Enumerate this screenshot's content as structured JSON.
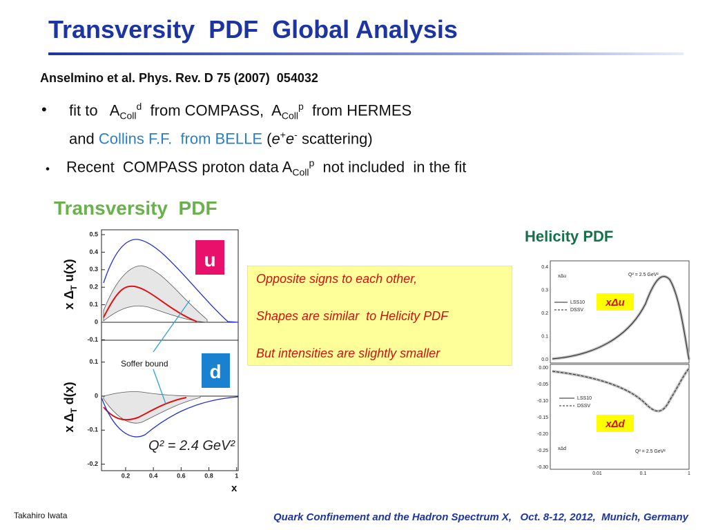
{
  "header": {
    "title": "Transversity  PDF  Global Analysis"
  },
  "reference": "Anselmino et al. Phys. Rev. D 75 (2007)  054032",
  "bullets": [
    {
      "marker": "•",
      "line1": [
        "fit to   A",
        "Coll",
        "d",
        "  from COMPASS,  A",
        "Coll",
        "p",
        "  from HERMES"
      ],
      "line2": [
        "and ",
        "Collins F.F.  from BELLE",
        " (",
        "e",
        "+",
        "e",
        "-",
        " scattering)"
      ]
    },
    {
      "marker": "・",
      "line1": [
        "Recent  COMPASS proton data A",
        "Coll",
        "p",
        "  not included  in the fit"
      ]
    }
  ],
  "transversity": {
    "title": "Transversity  PDF",
    "u_panel": {
      "label": "u",
      "y_label": [
        "x Δ",
        "T",
        " u(x)"
      ],
      "yticks": [
        0.5,
        0.4,
        0.3,
        0.2,
        0.1,
        0,
        -0.1
      ]
    },
    "d_panel": {
      "label": "d",
      "y_label": [
        "x Δ",
        "T",
        " d(x)"
      ],
      "yticks": [
        0.1,
        0,
        -0.1,
        -0.2
      ]
    },
    "xticks": [
      0.2,
      0.4,
      0.6,
      0.8,
      1
    ],
    "x_label": "x",
    "soffer": "Soffer bound",
    "q2": "Q² = 2.4 GeV²"
  },
  "note": [
    "Opposite signs to each other,",
    "Shapes are similar  to Helicity PDF",
    "But intensities are slightly smaller"
  ],
  "helicity": {
    "title": "Helicity PDF",
    "legend": [
      "LSS10",
      "DSSV"
    ],
    "top": {
      "label": "xΔu",
      "q2": "Q² = 2.5 GeV²",
      "box": "xΔu",
      "yticks": [
        "0.4",
        "0.3",
        "0.2",
        "0.1",
        "0.0"
      ]
    },
    "bottom": {
      "label": "xΔd",
      "q2": "Q² = 2.5 GeV²",
      "box": "xΔd",
      "yticks": [
        "0.00",
        "-0.05",
        "-0.10",
        "-0.15",
        "-0.20",
        "-0.25",
        "-0.30"
      ]
    },
    "xticks": [
      "0.01",
      "0.1",
      "1"
    ]
  },
  "footer": {
    "author": "Takahiro Iwata",
    "conference": "Quark Confinement and the Hadron Spectrum X,   Oct. 8-12, 2012,  Munich, Germany"
  }
}
